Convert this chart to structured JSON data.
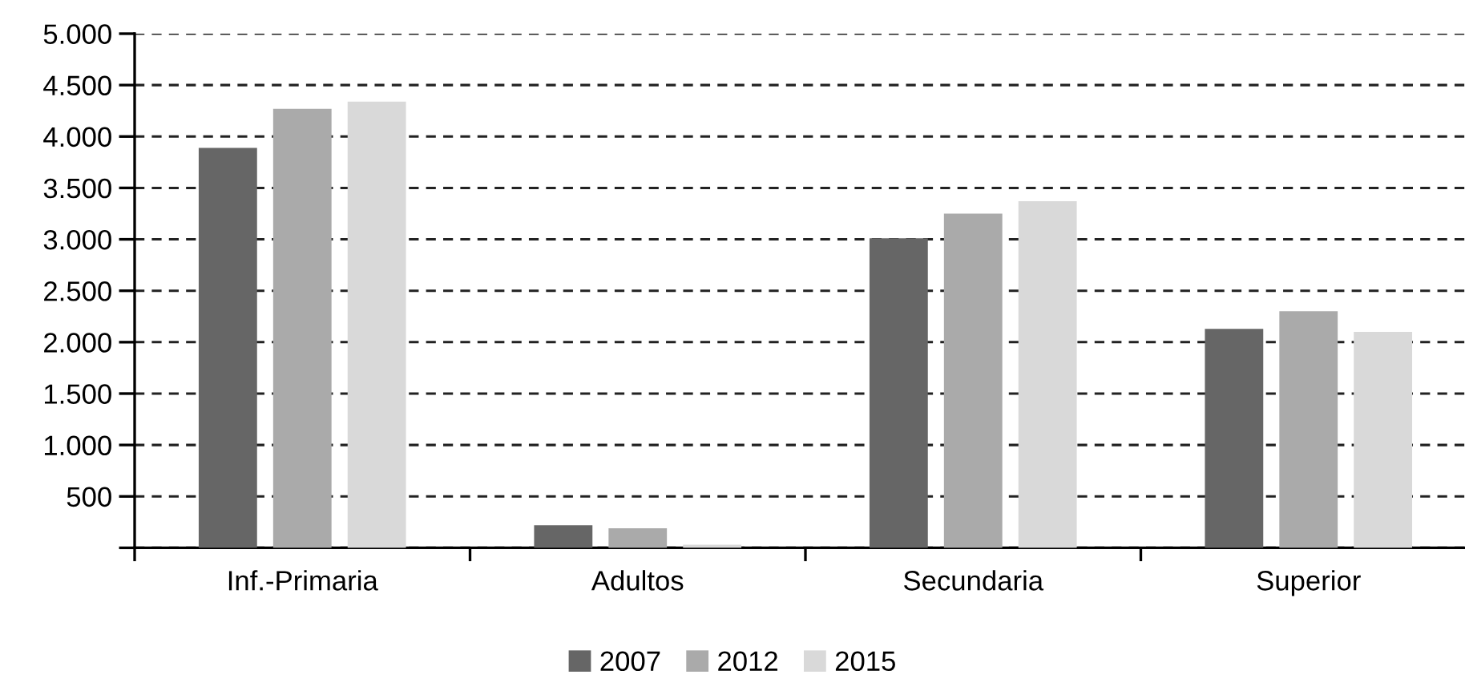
{
  "chart_data": {
    "type": "bar",
    "categories": [
      "Inf.-Primaria",
      "Adultos",
      "Secundaria",
      "Superior"
    ],
    "series": [
      {
        "name": "2007",
        "color": "#666666",
        "values": [
          3890,
          220,
          3010,
          2130
        ]
      },
      {
        "name": "2012",
        "color": "#aaaaaa",
        "values": [
          4270,
          190,
          3250,
          2300
        ]
      },
      {
        "name": "2015",
        "color": "#d9d9d9",
        "values": [
          4340,
          30,
          3370,
          2100
        ]
      }
    ],
    "ylim": [
      0,
      5000
    ],
    "yticks": [
      {
        "value": 0,
        "label": null
      },
      {
        "value": 500,
        "label": "500"
      },
      {
        "value": 1000,
        "label": "1.000"
      },
      {
        "value": 1500,
        "label": "1.500"
      },
      {
        "value": 2000,
        "label": "2.000"
      },
      {
        "value": 2500,
        "label": "2.500"
      },
      {
        "value": 3000,
        "label": "3.000"
      },
      {
        "value": 3500,
        "label": "3.500"
      },
      {
        "value": 4000,
        "label": "4.000"
      },
      {
        "value": 4500,
        "label": "4.500"
      },
      {
        "value": 5000,
        "label": "5.000"
      }
    ],
    "grid": "y",
    "legend": "bottom"
  }
}
